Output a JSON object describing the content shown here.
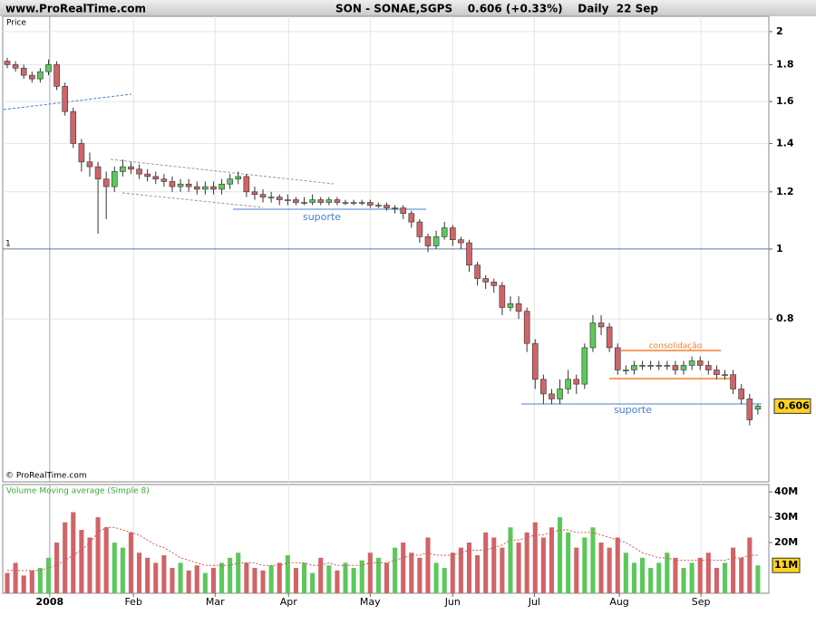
{
  "site": "www.ProRealTime.com",
  "header_title": "SON - SONAE,SGPS    0.606 (+0.33%)    Daily  22 Sep",
  "price_label": "Price",
  "copyright": "© ProRealTime.com",
  "reference_label": "1",
  "annotations": [
    "suporte",
    "consolidação",
    "suporte"
  ],
  "chart_data": [
    {
      "type": "candlestick",
      "log_scale": true,
      "grid": true,
      "xlim": [
        -0.55,
        92.33
      ],
      "xticks": [
        {
          "value": 5.15,
          "label": "2008"
        },
        {
          "value": 15.3,
          "label": "Feb"
        },
        {
          "value": 25.2,
          "label": "Mar"
        },
        {
          "value": 34.1,
          "label": "Apr"
        },
        {
          "value": 44.0,
          "label": "May"
        },
        {
          "value": 54.0,
          "label": "Jun"
        },
        {
          "value": 63.9,
          "label": "Jul"
        },
        {
          "value": 74.2,
          "label": "Aug"
        },
        {
          "value": 84.1,
          "label": "Sep"
        }
      ],
      "ylim": [
        0.476,
        2.1
      ],
      "yticks": [
        2,
        1.8,
        1.6,
        1.4,
        1.2,
        1,
        0.8
      ],
      "up_color": "#5cc85c",
      "down_color": "#d06468",
      "last_price": {
        "value": 0.606,
        "label": "0.606"
      },
      "open": [
        1.82,
        1.8,
        1.78,
        1.74,
        1.72,
        1.76,
        1.8,
        1.68,
        1.55,
        1.4,
        1.32,
        1.3,
        1.25,
        1.22,
        1.28,
        1.3,
        1.29,
        1.27,
        1.26,
        1.25,
        1.24,
        1.22,
        1.23,
        1.22,
        1.21,
        1.22,
        1.21,
        1.23,
        1.25,
        1.26,
        1.2,
        1.19,
        1.18,
        1.18,
        1.17,
        1.17,
        1.16,
        1.16,
        1.17,
        1.16,
        1.17,
        1.16,
        1.16,
        1.16,
        1.16,
        1.15,
        1.15,
        1.14,
        1.14,
        1.12,
        1.09,
        1.04,
        1.01,
        1.04,
        1.07,
        1.03,
        1.02,
        0.95,
        0.91,
        0.9,
        0.89,
        0.83,
        0.84,
        0.82,
        0.74,
        0.66,
        0.63,
        0.62,
        0.64,
        0.66,
        0.65,
        0.73,
        0.79,
        0.78,
        0.73,
        0.68,
        0.68,
        0.69,
        0.69,
        0.69,
        0.69,
        0.69,
        0.68,
        0.69,
        0.7,
        0.69,
        0.68,
        0.67,
        0.67,
        0.64,
        0.62,
        0.6
      ],
      "high": [
        1.84,
        1.82,
        1.8,
        1.76,
        1.78,
        1.83,
        1.82,
        1.7,
        1.57,
        1.42,
        1.36,
        1.32,
        1.28,
        1.3,
        1.33,
        1.32,
        1.31,
        1.29,
        1.28,
        1.27,
        1.26,
        1.25,
        1.25,
        1.24,
        1.24,
        1.24,
        1.25,
        1.27,
        1.28,
        1.27,
        1.22,
        1.21,
        1.2,
        1.19,
        1.19,
        1.18,
        1.18,
        1.19,
        1.18,
        1.18,
        1.18,
        1.17,
        1.17,
        1.17,
        1.17,
        1.16,
        1.16,
        1.15,
        1.15,
        1.13,
        1.1,
        1.05,
        1.06,
        1.09,
        1.08,
        1.04,
        1.03,
        0.96,
        0.92,
        0.91,
        0.9,
        0.86,
        0.86,
        0.83,
        0.75,
        0.67,
        0.64,
        0.66,
        0.68,
        0.67,
        0.74,
        0.81,
        0.81,
        0.79,
        0.74,
        0.69,
        0.7,
        0.7,
        0.7,
        0.7,
        0.7,
        0.7,
        0.7,
        0.71,
        0.71,
        0.7,
        0.69,
        0.68,
        0.68,
        0.65,
        0.63,
        0.61
      ],
      "low": [
        1.78,
        1.76,
        1.72,
        1.7,
        1.7,
        1.74,
        1.66,
        1.53,
        1.38,
        1.28,
        1.26,
        1.05,
        1.1,
        1.2,
        1.26,
        1.27,
        1.25,
        1.24,
        1.23,
        1.22,
        1.2,
        1.2,
        1.2,
        1.19,
        1.19,
        1.19,
        1.19,
        1.21,
        1.23,
        1.18,
        1.17,
        1.16,
        1.16,
        1.15,
        1.15,
        1.15,
        1.15,
        1.15,
        1.15,
        1.15,
        1.15,
        1.15,
        1.15,
        1.15,
        1.14,
        1.14,
        1.13,
        1.12,
        1.1,
        1.07,
        1.02,
        0.99,
        1.0,
        1.03,
        1.01,
        1.0,
        0.93,
        0.89,
        0.88,
        0.87,
        0.81,
        0.82,
        0.8,
        0.72,
        0.64,
        0.61,
        0.61,
        0.61,
        0.63,
        0.63,
        0.64,
        0.72,
        0.76,
        0.72,
        0.67,
        0.67,
        0.67,
        0.68,
        0.68,
        0.68,
        0.68,
        0.67,
        0.67,
        0.68,
        0.68,
        0.67,
        0.66,
        0.66,
        0.63,
        0.61,
        0.57,
        0.59
      ],
      "close": [
        1.8,
        1.78,
        1.74,
        1.72,
        1.76,
        1.8,
        1.68,
        1.55,
        1.4,
        1.32,
        1.3,
        1.25,
        1.22,
        1.28,
        1.3,
        1.29,
        1.27,
        1.26,
        1.25,
        1.24,
        1.22,
        1.23,
        1.22,
        1.21,
        1.22,
        1.21,
        1.23,
        1.25,
        1.26,
        1.2,
        1.19,
        1.18,
        1.18,
        1.17,
        1.17,
        1.16,
        1.16,
        1.17,
        1.16,
        1.17,
        1.16,
        1.16,
        1.16,
        1.16,
        1.15,
        1.15,
        1.14,
        1.14,
        1.12,
        1.09,
        1.04,
        1.01,
        1.04,
        1.07,
        1.03,
        1.02,
        0.95,
        0.91,
        0.9,
        0.89,
        0.83,
        0.84,
        0.82,
        0.74,
        0.66,
        0.63,
        0.62,
        0.64,
        0.66,
        0.65,
        0.73,
        0.79,
        0.78,
        0.73,
        0.68,
        0.68,
        0.69,
        0.69,
        0.69,
        0.69,
        0.69,
        0.68,
        0.69,
        0.7,
        0.69,
        0.68,
        0.67,
        0.67,
        0.64,
        0.62,
        0.58,
        0.606
      ]
    },
    {
      "type": "bar",
      "title": "Volume Moving average (Simple 8)",
      "ylim": [
        0,
        42.9
      ],
      "yticks": [
        {
          "value": 40,
          "label": "40M"
        },
        {
          "value": 30,
          "label": "30M"
        },
        {
          "value": 20,
          "label": "20M"
        }
      ],
      "last_volume": {
        "value": 11,
        "label": "11M"
      },
      "series": [
        {
          "name": "Volume",
          "values": [
            8,
            12,
            7,
            9,
            10,
            14,
            20,
            28,
            32,
            25,
            22,
            30,
            26,
            20,
            18,
            24,
            16,
            14,
            12,
            15,
            10,
            12,
            9,
            11,
            8,
            10,
            12,
            14,
            16,
            12,
            10,
            9,
            11,
            12,
            15,
            10,
            12,
            8,
            14,
            11,
            9,
            12,
            10,
            13,
            16,
            14,
            12,
            18,
            20,
            16,
            14,
            22,
            12,
            10,
            16,
            18,
            20,
            15,
            24,
            22,
            18,
            26,
            20,
            24,
            28,
            22,
            26,
            30,
            24,
            18,
            22,
            26,
            20,
            18,
            22,
            16,
            12,
            14,
            10,
            12,
            16,
            14,
            10,
            12,
            14,
            16,
            10,
            12,
            18,
            14,
            22,
            11
          ]
        },
        {
          "name": "Moving average",
          "color": "#e05050",
          "values": [
            9,
            9,
            9,
            9,
            9,
            10,
            11,
            13,
            15,
            17,
            20,
            24,
            26,
            26,
            25,
            24,
            23,
            21,
            19,
            18,
            16,
            14,
            13,
            12,
            11,
            11,
            11,
            11,
            12,
            12,
            12,
            11,
            11,
            11,
            12,
            12,
            12,
            11,
            11,
            12,
            11,
            11,
            11,
            11,
            12,
            12,
            12,
            13,
            14,
            15,
            15,
            16,
            15,
            15,
            15,
            16,
            17,
            17,
            17,
            18,
            19,
            21,
            21,
            22,
            23,
            23,
            24,
            25,
            25,
            24,
            24,
            24,
            23,
            22,
            21,
            20,
            18,
            16,
            15,
            14,
            14,
            13,
            13,
            13,
            13,
            13,
            13,
            13,
            14,
            14,
            15,
            15
          ]
        }
      ]
    }
  ]
}
